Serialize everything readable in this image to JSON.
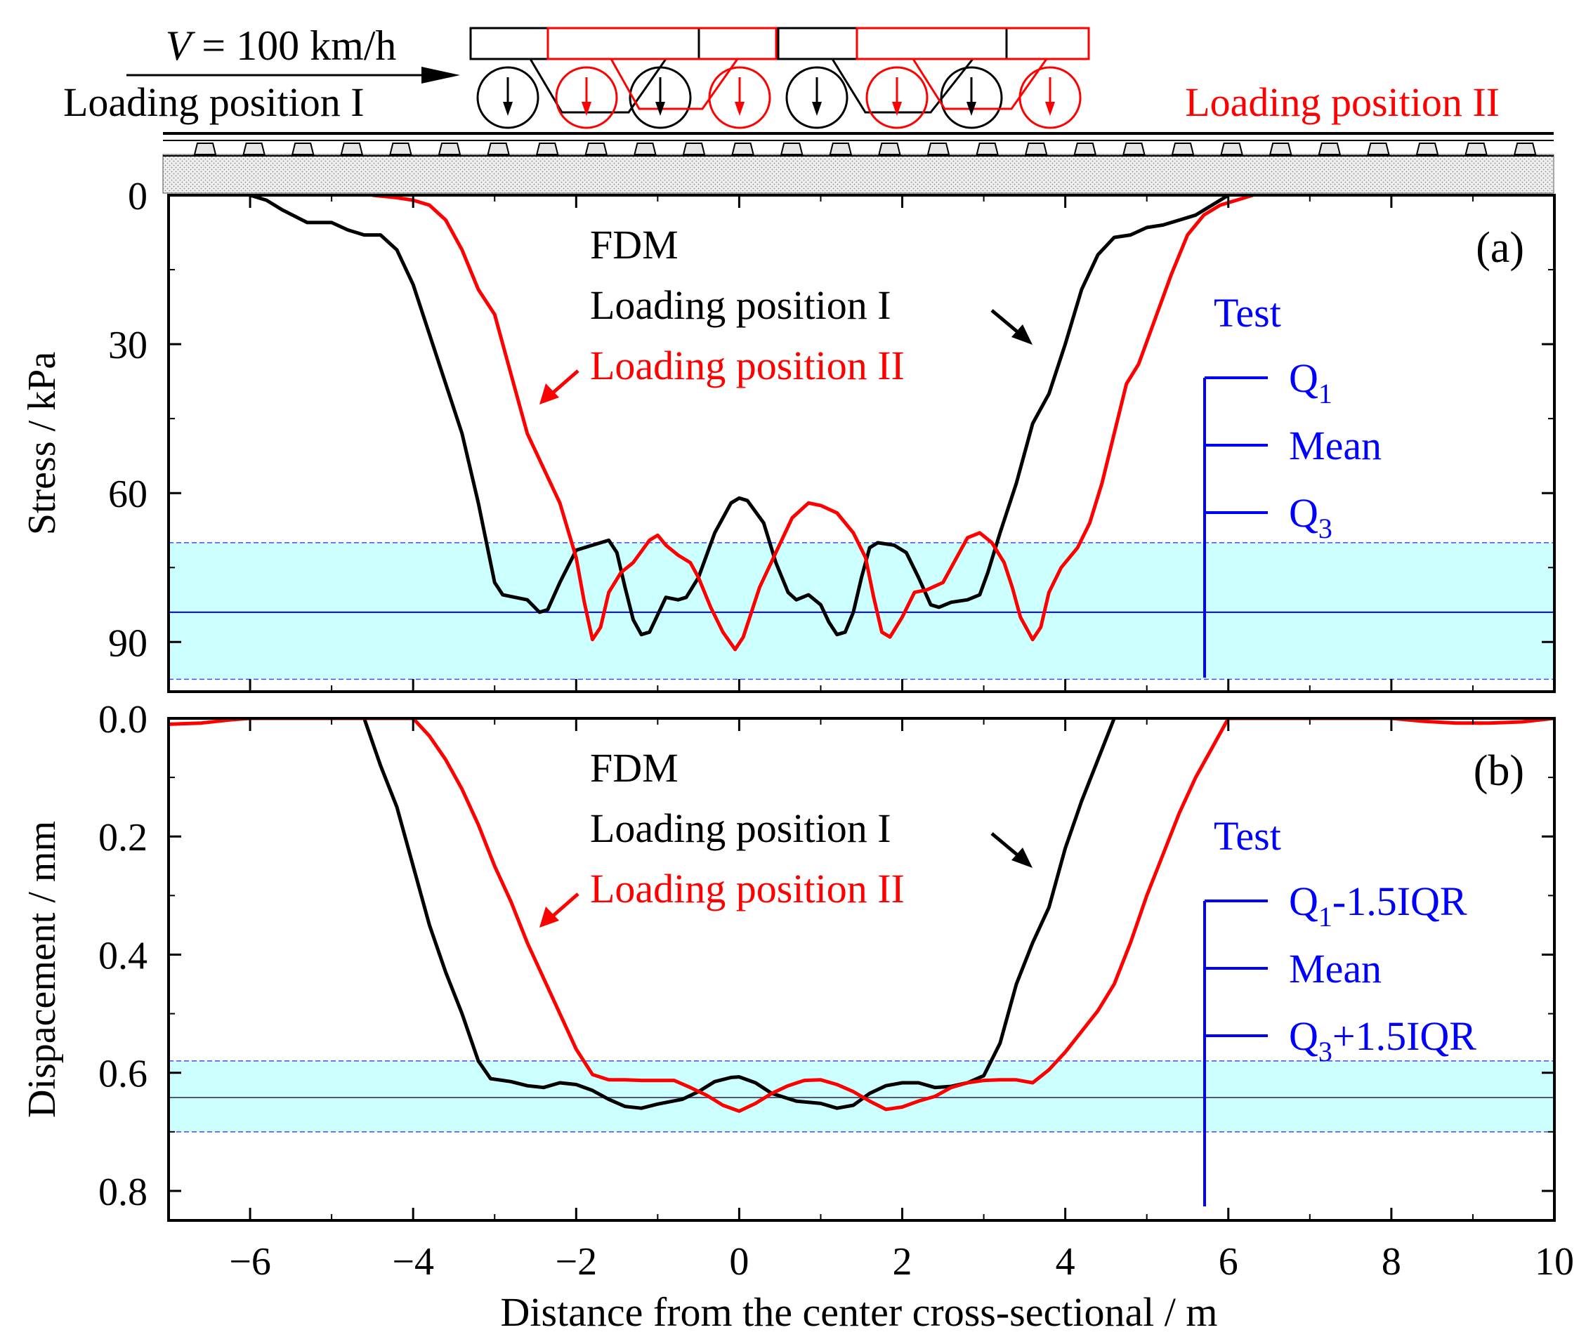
{
  "header": {
    "speed_label": "V = 100 km/h",
    "speed_var": "V",
    "speed_rest": " = 100 km/h",
    "position_I": "Loading position I",
    "position_II": "Loading position II"
  },
  "colors": {
    "black": "#000000",
    "red": "#ff0000",
    "blue": "#0000ff",
    "band": "#ccffff",
    "band_edge": "#4a4af0",
    "ballast": "#d9d9d9",
    "sleeper": "#e6e6e6"
  },
  "chart_data": [
    {
      "type": "line",
      "panel": "(a)",
      "title": "",
      "xlabel": "Distance from the center cross-sectional / m",
      "ylabel": "Stress / kPa",
      "xlim": [
        -7,
        10
      ],
      "ylim": [
        0,
        100
      ],
      "y_inverted": true,
      "y_ticks": [
        "0",
        "30",
        "60",
        "90"
      ],
      "x_ticks": [
        "−6",
        "−4",
        "−2",
        "0",
        "2",
        "4",
        "6",
        "8",
        "10"
      ],
      "annotation_method": "FDM",
      "legend": {
        "title": "Test",
        "items": [
          "Q1",
          "Mean",
          "Q3"
        ],
        "item_main": [
          "Q",
          "Mean",
          "Q"
        ],
        "item_sub": [
          "1",
          "",
          "3"
        ],
        "item_tail": [
          "",
          "",
          ""
        ]
      },
      "band": {
        "lower": 70,
        "mean": 84,
        "upper": 97.5
      },
      "series": [
        {
          "name": "Loading position I",
          "color": "#000000",
          "points": [
            [
              -6.0,
              0
            ],
            [
              -5.8,
              1
            ],
            [
              -5.6,
              3
            ],
            [
              -5.3,
              5.5
            ],
            [
              -5.0,
              5.5
            ],
            [
              -4.8,
              7
            ],
            [
              -4.6,
              8
            ],
            [
              -4.4,
              8
            ],
            [
              -4.2,
              11
            ],
            [
              -4.0,
              18
            ],
            [
              -3.8,
              28
            ],
            [
              -3.6,
              38
            ],
            [
              -3.4,
              48
            ],
            [
              -3.2,
              62
            ],
            [
              -3.1,
              70
            ],
            [
              -3.0,
              78
            ],
            [
              -2.9,
              80.5
            ],
            [
              -2.75,
              81
            ],
            [
              -2.6,
              81.5
            ],
            [
              -2.45,
              84
            ],
            [
              -2.35,
              83.5
            ],
            [
              -2.2,
              78
            ],
            [
              -2.0,
              71.5
            ],
            [
              -1.8,
              70.5
            ],
            [
              -1.6,
              69.5
            ],
            [
              -1.5,
              72
            ],
            [
              -1.4,
              79
            ],
            [
              -1.3,
              85.5
            ],
            [
              -1.2,
              88.5
            ],
            [
              -1.1,
              88
            ],
            [
              -1.0,
              84.5
            ],
            [
              -0.9,
              81
            ],
            [
              -0.75,
              81.5
            ],
            [
              -0.65,
              81
            ],
            [
              -0.5,
              77
            ],
            [
              -0.3,
              68
            ],
            [
              -0.1,
              62
            ],
            [
              0.0,
              61
            ],
            [
              0.1,
              61.5
            ],
            [
              0.3,
              66
            ],
            [
              0.45,
              74
            ],
            [
              0.6,
              80
            ],
            [
              0.7,
              81.5
            ],
            [
              0.85,
              80.5
            ],
            [
              1.0,
              82.5
            ],
            [
              1.1,
              86
            ],
            [
              1.2,
              88.5
            ],
            [
              1.3,
              88
            ],
            [
              1.4,
              84
            ],
            [
              1.5,
              77
            ],
            [
              1.6,
              71
            ],
            [
              1.7,
              70
            ],
            [
              1.9,
              70.5
            ],
            [
              2.05,
              72
            ],
            [
              2.2,
              77
            ],
            [
              2.35,
              82.5
            ],
            [
              2.45,
              83
            ],
            [
              2.6,
              82
            ],
            [
              2.8,
              81.5
            ],
            [
              2.95,
              80.5
            ],
            [
              3.05,
              76
            ],
            [
              3.2,
              68
            ],
            [
              3.4,
              58
            ],
            [
              3.6,
              46
            ],
            [
              3.8,
              40
            ],
            [
              4.0,
              30
            ],
            [
              4.2,
              19
            ],
            [
              4.4,
              12
            ],
            [
              4.6,
              8.5
            ],
            [
              4.8,
              8
            ],
            [
              5.0,
              6.5
            ],
            [
              5.2,
              6
            ],
            [
              5.4,
              5
            ],
            [
              5.6,
              4
            ],
            [
              5.8,
              2
            ],
            [
              6.0,
              0
            ]
          ]
        },
        {
          "name": "Loading position II",
          "color": "#ff0000",
          "points": [
            [
              -4.5,
              0
            ],
            [
              -4.2,
              0.5
            ],
            [
              -4.0,
              1
            ],
            [
              -3.8,
              2
            ],
            [
              -3.6,
              5
            ],
            [
              -3.4,
              11
            ],
            [
              -3.2,
              19
            ],
            [
              -3.0,
              24
            ],
            [
              -2.8,
              36
            ],
            [
              -2.6,
              48
            ],
            [
              -2.4,
              55
            ],
            [
              -2.2,
              62
            ],
            [
              -2.0,
              73
            ],
            [
              -1.9,
              82
            ],
            [
              -1.8,
              89.5
            ],
            [
              -1.7,
              87
            ],
            [
              -1.6,
              80
            ],
            [
              -1.45,
              76
            ],
            [
              -1.3,
              74
            ],
            [
              -1.1,
              69.5
            ],
            [
              -1.0,
              68.5
            ],
            [
              -0.9,
              70.5
            ],
            [
              -0.75,
              72.5
            ],
            [
              -0.6,
              74
            ],
            [
              -0.5,
              77
            ],
            [
              -0.35,
              83
            ],
            [
              -0.2,
              88
            ],
            [
              -0.05,
              91.5
            ],
            [
              0.05,
              89
            ],
            [
              0.25,
              79
            ],
            [
              0.45,
              72
            ],
            [
              0.65,
              65
            ],
            [
              0.85,
              62
            ],
            [
              1.0,
              62.5
            ],
            [
              1.2,
              64
            ],
            [
              1.4,
              68
            ],
            [
              1.55,
              73
            ],
            [
              1.65,
              81
            ],
            [
              1.75,
              88
            ],
            [
              1.85,
              89
            ],
            [
              2.0,
              85
            ],
            [
              2.15,
              80
            ],
            [
              2.3,
              79.5
            ],
            [
              2.5,
              78
            ],
            [
              2.6,
              75
            ],
            [
              2.8,
              69
            ],
            [
              2.95,
              68
            ],
            [
              3.1,
              70
            ],
            [
              3.25,
              74
            ],
            [
              3.35,
              79
            ],
            [
              3.45,
              85
            ],
            [
              3.6,
              89.5
            ],
            [
              3.7,
              87
            ],
            [
              3.8,
              80
            ],
            [
              3.95,
              75
            ],
            [
              4.15,
              71
            ],
            [
              4.3,
              66
            ],
            [
              4.45,
              58
            ],
            [
              4.6,
              48
            ],
            [
              4.75,
              38
            ],
            [
              4.9,
              34
            ],
            [
              5.1,
              25
            ],
            [
              5.3,
              16
            ],
            [
              5.5,
              8
            ],
            [
              5.7,
              4
            ],
            [
              5.9,
              2
            ],
            [
              6.1,
              1
            ],
            [
              6.3,
              0
            ]
          ]
        }
      ]
    },
    {
      "type": "line",
      "panel": "(b)",
      "title": "",
      "xlabel": "Distance from the center cross-sectional / m",
      "ylabel": "Dispacement / mm",
      "xlim": [
        -7,
        10
      ],
      "ylim": [
        0.0,
        0.85
      ],
      "y_inverted": true,
      "y_ticks": [
        "0.0",
        "0.2",
        "0.4",
        "0.6",
        "0.8"
      ],
      "x_ticks": [
        "−6",
        "−4",
        "−2",
        "0",
        "2",
        "4",
        "6",
        "8",
        "10"
      ],
      "annotation_method": "FDM",
      "legend": {
        "title": "Test",
        "items": [
          "Q1-1.5IQR",
          "Mean",
          "Q3+1.5IQR"
        ],
        "item_main": [
          "Q",
          "Mean",
          "Q"
        ],
        "item_sub": [
          "1",
          "",
          "3"
        ],
        "item_tail": [
          "-1.5IQR",
          "",
          "+1.5IQR"
        ]
      },
      "band": {
        "lower": 0.58,
        "mean": 0.642,
        "upper": 0.7
      },
      "series": [
        {
          "name": "Loading position I",
          "color": "#000000",
          "points": [
            [
              -4.6,
              0.0
            ],
            [
              -4.4,
              0.08
            ],
            [
              -4.2,
              0.15
            ],
            [
              -4.0,
              0.25
            ],
            [
              -3.8,
              0.35
            ],
            [
              -3.6,
              0.43
            ],
            [
              -3.4,
              0.5
            ],
            [
              -3.2,
              0.58
            ],
            [
              -3.05,
              0.61
            ],
            [
              -2.8,
              0.615
            ],
            [
              -2.6,
              0.622
            ],
            [
              -2.4,
              0.625
            ],
            [
              -2.2,
              0.617
            ],
            [
              -2.0,
              0.62
            ],
            [
              -1.8,
              0.63
            ],
            [
              -1.6,
              0.645
            ],
            [
              -1.4,
              0.657
            ],
            [
              -1.2,
              0.66
            ],
            [
              -1.0,
              0.653
            ],
            [
              -0.7,
              0.645
            ],
            [
              -0.5,
              0.632
            ],
            [
              -0.3,
              0.615
            ],
            [
              -0.1,
              0.608
            ],
            [
              0.0,
              0.607
            ],
            [
              0.2,
              0.617
            ],
            [
              0.4,
              0.635
            ],
            [
              0.7,
              0.648
            ],
            [
              1.0,
              0.652
            ],
            [
              1.2,
              0.66
            ],
            [
              1.4,
              0.655
            ],
            [
              1.6,
              0.635
            ],
            [
              1.8,
              0.622
            ],
            [
              2.0,
              0.617
            ],
            [
              2.2,
              0.617
            ],
            [
              2.4,
              0.625
            ],
            [
              2.6,
              0.623
            ],
            [
              2.8,
              0.617
            ],
            [
              3.0,
              0.605
            ],
            [
              3.2,
              0.55
            ],
            [
              3.4,
              0.45
            ],
            [
              3.6,
              0.38
            ],
            [
              3.8,
              0.32
            ],
            [
              4.0,
              0.22
            ],
            [
              4.2,
              0.14
            ],
            [
              4.4,
              0.07
            ],
            [
              4.6,
              0.0
            ]
          ]
        },
        {
          "name": "Loading position II",
          "color": "#ff0000",
          "points": [
            [
              -7.0,
              0.01
            ],
            [
              -6.6,
              0.008
            ],
            [
              -6.2,
              0.002
            ],
            [
              -6.0,
              0.0
            ],
            [
              -4.0,
              0.0
            ],
            [
              -3.8,
              0.03
            ],
            [
              -3.6,
              0.07
            ],
            [
              -3.4,
              0.12
            ],
            [
              -3.2,
              0.18
            ],
            [
              -3.0,
              0.25
            ],
            [
              -2.8,
              0.31
            ],
            [
              -2.6,
              0.38
            ],
            [
              -2.4,
              0.44
            ],
            [
              -2.2,
              0.5
            ],
            [
              -2.0,
              0.56
            ],
            [
              -1.8,
              0.603
            ],
            [
              -1.6,
              0.612
            ],
            [
              -1.4,
              0.612
            ],
            [
              -1.2,
              0.613
            ],
            [
              -0.8,
              0.613
            ],
            [
              -0.6,
              0.625
            ],
            [
              -0.4,
              0.638
            ],
            [
              -0.2,
              0.655
            ],
            [
              0.0,
              0.665
            ],
            [
              0.2,
              0.652
            ],
            [
              0.4,
              0.635
            ],
            [
              0.6,
              0.622
            ],
            [
              0.8,
              0.613
            ],
            [
              1.0,
              0.612
            ],
            [
              1.2,
              0.62
            ],
            [
              1.4,
              0.632
            ],
            [
              1.6,
              0.648
            ],
            [
              1.8,
              0.662
            ],
            [
              2.0,
              0.658
            ],
            [
              2.2,
              0.648
            ],
            [
              2.4,
              0.64
            ],
            [
              2.6,
              0.625
            ],
            [
              2.8,
              0.617
            ],
            [
              3.0,
              0.613
            ],
            [
              3.2,
              0.612
            ],
            [
              3.4,
              0.612
            ],
            [
              3.6,
              0.617
            ],
            [
              3.8,
              0.595
            ],
            [
              4.0,
              0.565
            ],
            [
              4.2,
              0.53
            ],
            [
              4.4,
              0.495
            ],
            [
              4.6,
              0.45
            ],
            [
              4.8,
              0.38
            ],
            [
              5.0,
              0.3
            ],
            [
              5.2,
              0.23
            ],
            [
              5.4,
              0.16
            ],
            [
              5.6,
              0.1
            ],
            [
              5.8,
              0.05
            ],
            [
              6.0,
              0.0
            ],
            [
              8.0,
              0.0
            ],
            [
              8.4,
              0.005
            ],
            [
              8.8,
              0.008
            ],
            [
              9.2,
              0.008
            ],
            [
              9.6,
              0.006
            ],
            [
              10.0,
              0.0
            ]
          ]
        }
      ]
    }
  ]
}
